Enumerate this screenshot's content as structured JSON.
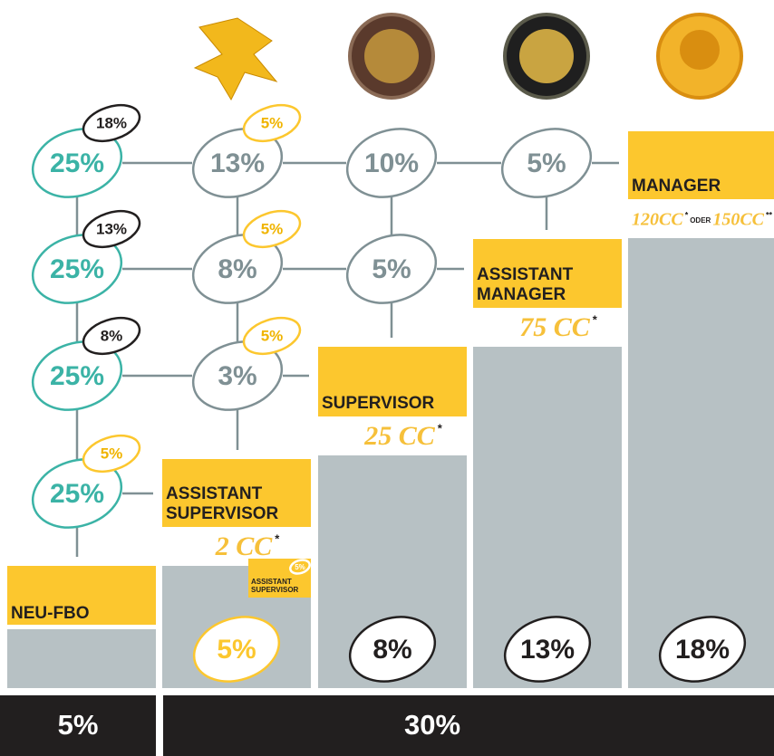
{
  "ranks": [
    {
      "name": [
        "NEU-FBO"
      ]
    },
    {
      "name": [
        "ASSISTANT",
        "SUPERVISOR"
      ],
      "requirement": "2 CC",
      "note": "*"
    },
    {
      "name": [
        "SUPERVISOR"
      ],
      "requirement": "25 CC",
      "note": "*"
    },
    {
      "name": [
        "ASSISTANT",
        "MANAGER"
      ],
      "requirement": "75 CC",
      "note": "*"
    },
    {
      "name": [
        "MANAGER"
      ],
      "requirement": "120CC",
      "note": "*",
      "or": "ODER",
      "requirement_alt": "150CC",
      "note_alt": "**"
    }
  ],
  "matrix": [
    [
      {
        "value": "25%",
        "badge": "18%"
      },
      {
        "value": "13%",
        "badge": "5%"
      },
      {
        "value": "10%"
      },
      {
        "value": "5%"
      }
    ],
    [
      {
        "value": "25%",
        "badge": "13%"
      },
      {
        "value": "8%",
        "badge": "5%"
      },
      {
        "value": "5%"
      }
    ],
    [
      {
        "value": "25%",
        "badge": "8%"
      },
      {
        "value": "3%",
        "badge": "5%"
      }
    ],
    [
      {
        "value": "25%",
        "badge": "5%"
      }
    ]
  ],
  "small_label": {
    "badge": "5%",
    "lines": [
      "ASSISTANT",
      "SUPERVISOR"
    ]
  },
  "rank_bonus": [
    "5%",
    "8%",
    "13%",
    "18%"
  ],
  "totals": [
    "5%",
    "30%"
  ]
}
